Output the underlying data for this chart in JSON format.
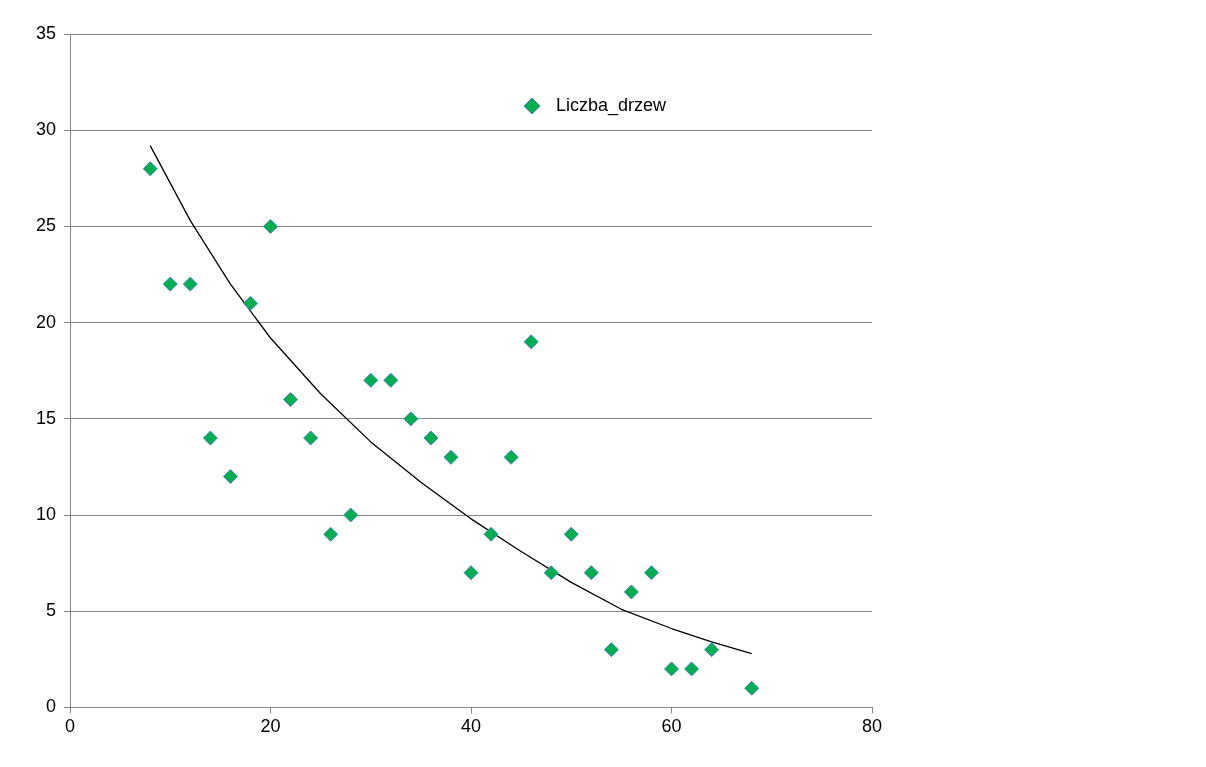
{
  "chart_data": {
    "type": "scatter",
    "legend": "top right",
    "grid": "y",
    "marker": "diamond",
    "xlim": [
      0,
      80
    ],
    "xticks": [
      0,
      20,
      40,
      60,
      80
    ],
    "ylim": [
      0,
      35
    ],
    "yticks": [
      0,
      5,
      10,
      15,
      20,
      25,
      30,
      35
    ],
    "series": [
      {
        "name": "Liczba_drzew",
        "color": "#00b050",
        "x": [
          8,
          10,
          12,
          14,
          16,
          18,
          20,
          22,
          24,
          26,
          28,
          30,
          32,
          34,
          36,
          38,
          40,
          42,
          44,
          46,
          48,
          50,
          52,
          54,
          56,
          58,
          60,
          62,
          64,
          68
        ],
        "values": [
          28,
          22,
          22,
          14,
          12,
          21,
          25,
          16,
          14,
          9,
          10,
          17,
          17,
          15,
          14,
          13,
          7,
          9,
          13,
          19,
          7,
          9,
          7,
          3,
          6,
          7,
          2,
          2,
          3,
          1
        ]
      },
      {
        "type": "line",
        "color": "#000000",
        "marker": "none",
        "x": [
          8,
          12,
          16,
          20,
          25,
          30,
          35,
          40,
          45,
          50,
          55,
          60,
          64,
          68
        ],
        "values": [
          29.2,
          25.3,
          22,
          19.2,
          16.3,
          13.8,
          11.7,
          9.8,
          8.1,
          6.5,
          5.1,
          4.1,
          3.4,
          2.8
        ]
      }
    ]
  }
}
